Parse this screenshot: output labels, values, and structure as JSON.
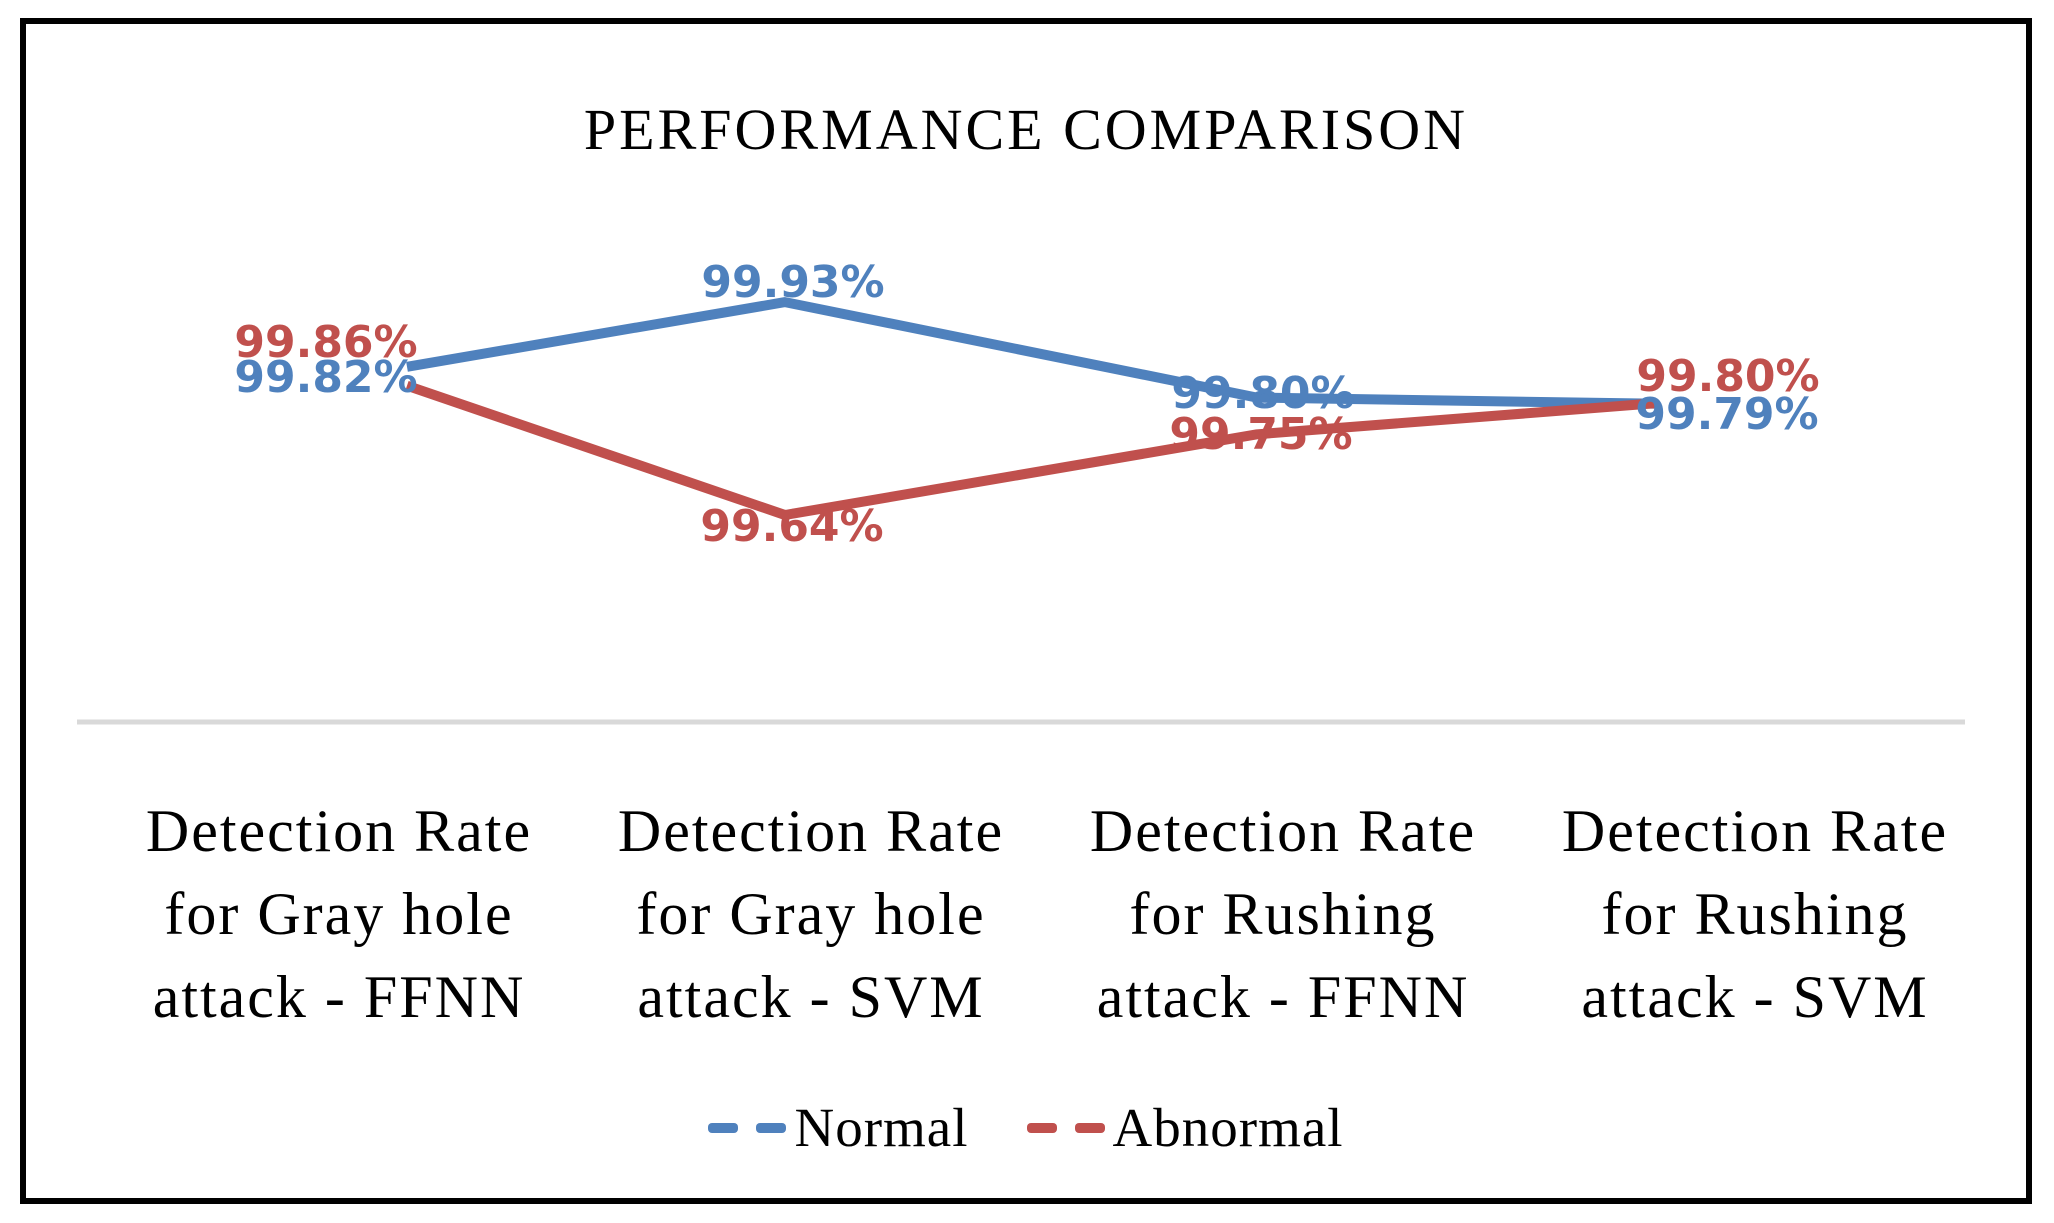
{
  "chart_data": {
    "type": "line",
    "title": "PERFORMANCE COMPARISON",
    "categories": [
      "Detection Rate for Gray hole attack - FFNN",
      "Detection Rate for Gray hole attack - SVM",
      "Detection Rate for Rushing attack - FFNN",
      "Detection Rate for Rushing attack - SVM"
    ],
    "series": [
      {
        "name": "Normal",
        "color": "#4F81BD",
        "values": [
          99.82,
          99.93,
          99.8,
          99.79
        ],
        "labels": [
          "99.82%",
          "99.93%",
          "99.80%",
          "99.79%"
        ]
      },
      {
        "name": "Abnormal",
        "color": "#C0504D",
        "values": [
          99.86,
          99.64,
          99.75,
          99.8
        ],
        "labels": [
          "99.86%",
          "99.64%",
          "99.75%",
          "99.80%"
        ]
      }
    ],
    "legend": {
      "position": "bottom"
    },
    "axis": {
      "baseline_color": "#D9D9D9",
      "value_axis_visible": false,
      "gridlines": false
    }
  }
}
